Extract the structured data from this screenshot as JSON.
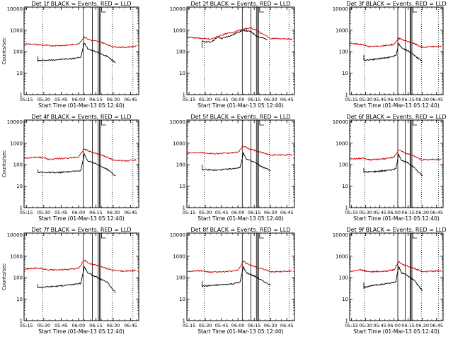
{
  "colors": {
    "events": "#000000",
    "lld": "#cc0000",
    "axes": "#000000",
    "background": "#ffffff"
  },
  "chart_data": [
    {
      "type": "line",
      "title": "Det 1f BLACK = Events, RED = LLD",
      "xlabel": "Start Time (01-Mar-13 05:12:40)",
      "ylabel": "Counts/sec",
      "yscale": "log",
      "ylim": [
        1,
        12000
      ],
      "xlim": [
        "05:13",
        "06:52"
      ],
      "x_ticks": [
        "05:15",
        "05:30",
        "05:45",
        "06:00",
        "06:15",
        "06:30",
        "06:45"
      ],
      "y_ticks": [
        "1",
        "10",
        "100",
        "1000",
        "10000"
      ],
      "dotted_vlines": [
        "05:29",
        "06:29",
        "06:47"
      ],
      "solid_vlines": [
        "06:04",
        "06:12",
        "06:17",
        "06:18",
        "06:19"
      ],
      "flag_time": "06:20",
      "series": [
        {
          "name": "Events",
          "x": [
            "05:25",
            "05:25",
            "05:40",
            "05:55",
            "06:02",
            "06:05",
            "06:08",
            "06:15",
            "06:25",
            "06:32"
          ],
          "values": [
            60,
            38,
            42,
            48,
            55,
            260,
            140,
            100,
            60,
            30
          ]
        },
        {
          "name": "LLD",
          "x": [
            "05:13",
            "05:20",
            "05:35",
            "05:50",
            "06:00",
            "06:05",
            "06:10",
            "06:20",
            "06:30",
            "06:40",
            "06:50"
          ],
          "values": [
            230,
            225,
            190,
            200,
            230,
            480,
            350,
            270,
            170,
            160,
            180
          ]
        }
      ]
    },
    {
      "type": "line",
      "title": "Det 2f BLACK = Events, RED = LLD",
      "xlabel": "Start Time (01-Mar-13 05:12:40)",
      "ylabel": "",
      "yscale": "log",
      "ylim": [
        1,
        12000
      ],
      "xlim": [
        "05:13",
        "06:52"
      ],
      "x_ticks": [
        "05:15",
        "05:30",
        "05:45",
        "06:00",
        "06:15",
        "06:30",
        "06:45"
      ],
      "y_ticks": [
        "1",
        "10",
        "100",
        "1000",
        "10000"
      ],
      "dotted_vlines": [
        "05:29",
        "06:29",
        "06:47"
      ],
      "solid_vlines": [
        "06:04",
        "06:12",
        "06:17",
        "06:18",
        "06:19"
      ],
      "flag_time": "06:20",
      "series": [
        {
          "name": "Events",
          "x": [
            "05:27",
            "05:27",
            "05:35",
            "05:42",
            "05:45",
            "05:50",
            "05:55",
            "06:00",
            "06:05",
            "06:12",
            "06:18",
            "06:27"
          ],
          "values": [
            150,
            300,
            280,
            480,
            400,
            500,
            600,
            800,
            1000,
            850,
            500,
            380
          ]
        },
        {
          "name": "LLD",
          "x": [
            "05:13",
            "05:25",
            "05:35",
            "05:45",
            "05:55",
            "06:05",
            "06:12",
            "06:20",
            "06:30",
            "06:50"
          ],
          "values": [
            480,
            420,
            380,
            600,
            800,
            1100,
            1300,
            800,
            420,
            380
          ]
        }
      ]
    },
    {
      "type": "line",
      "title": "Det 3f BLACK = Events, RED = LLD",
      "xlabel": "Start Time (01-Mar-13 05:12:40)",
      "ylabel": "",
      "yscale": "log",
      "ylim": [
        1,
        12000
      ],
      "xlim": [
        "05:13",
        "06:52"
      ],
      "x_ticks": [
        "05:15",
        "05:30",
        "05:45",
        "06:00",
        "06:15",
        "06:30",
        "06:45"
      ],
      "y_ticks": [
        "1",
        "10",
        "100",
        "1000",
        "10000"
      ],
      "dotted_vlines": [
        "05:29",
        "06:29",
        "06:47"
      ],
      "solid_vlines": [
        "06:04",
        "06:12",
        "06:17",
        "06:18",
        "06:19"
      ],
      "flag_time": "06:20",
      "series": [
        {
          "name": "Events",
          "x": [
            "05:28",
            "05:28",
            "05:40",
            "05:55",
            "06:02",
            "06:05",
            "06:08",
            "06:15",
            "06:22",
            "06:30"
          ],
          "values": [
            70,
            40,
            45,
            55,
            65,
            250,
            150,
            110,
            65,
            35
          ]
        },
        {
          "name": "LLD",
          "x": [
            "05:13",
            "05:25",
            "05:35",
            "05:50",
            "06:00",
            "06:05",
            "06:10",
            "06:20",
            "06:30",
            "06:50"
          ],
          "values": [
            240,
            220,
            170,
            190,
            220,
            420,
            340,
            250,
            160,
            180
          ]
        }
      ]
    },
    {
      "type": "line",
      "title": "Det 4f BLACK = Events, RED = LLD",
      "xlabel": "Start Time (01-Mar-13 05:12:40)",
      "ylabel": "Counts/sec",
      "yscale": "log",
      "ylim": [
        1,
        12000
      ],
      "xlim": [
        "05:13",
        "06:52"
      ],
      "x_ticks": [
        "05:15",
        "05:30",
        "05:45",
        "06:00",
        "06:15",
        "06:30",
        "06:45"
      ],
      "y_ticks": [
        "1",
        "10",
        "100",
        "1000",
        "10000"
      ],
      "dotted_vlines": [
        "05:29",
        "06:29",
        "06:47"
      ],
      "solid_vlines": [
        "06:04",
        "06:12",
        "06:17",
        "06:18",
        "06:19"
      ],
      "flag_time": "06:20",
      "series": [
        {
          "name": "Events",
          "x": [
            "05:25",
            "05:25",
            "05:40",
            "05:55",
            "06:02",
            "06:05",
            "06:08",
            "06:15",
            "06:25",
            "06:32"
          ],
          "values": [
            60,
            45,
            42,
            48,
            55,
            300,
            150,
            110,
            60,
            30
          ]
        },
        {
          "name": "LLD",
          "x": [
            "05:13",
            "05:25",
            "05:35",
            "05:50",
            "06:00",
            "06:05",
            "06:10",
            "06:20",
            "06:30",
            "06:40",
            "06:50"
          ],
          "values": [
            200,
            230,
            180,
            200,
            230,
            550,
            400,
            280,
            170,
            150,
            170
          ]
        }
      ]
    },
    {
      "type": "line",
      "title": "Det 5f BLACK = Events, RED = LLD",
      "xlabel": "Start Time (01-Mar-13 05:12:40)",
      "ylabel": "",
      "yscale": "log",
      "ylim": [
        1,
        12000
      ],
      "xlim": [
        "05:13",
        "06:52"
      ],
      "x_ticks": [
        "05:15",
        "05:30",
        "05:45",
        "06:00",
        "06:15",
        "06:30",
        "06:45"
      ],
      "y_ticks": [
        "1",
        "10",
        "100",
        "1000",
        "10000"
      ],
      "dotted_vlines": [
        "05:29",
        "06:29",
        "06:47"
      ],
      "solid_vlines": [
        "06:04",
        "06:12",
        "06:17",
        "06:18",
        "06:19"
      ],
      "flag_time": "06:20",
      "series": [
        {
          "name": "Events",
          "x": [
            "05:27",
            "05:27",
            "05:40",
            "05:55",
            "06:02",
            "06:05",
            "06:08",
            "06:15",
            "06:22",
            "06:30"
          ],
          "values": [
            100,
            60,
            55,
            65,
            75,
            350,
            180,
            130,
            80,
            55
          ]
        },
        {
          "name": "LLD",
          "x": [
            "05:13",
            "05:25",
            "05:35",
            "05:50",
            "06:00",
            "06:05",
            "06:10",
            "06:20",
            "06:30",
            "06:50"
          ],
          "values": [
            350,
            380,
            330,
            340,
            380,
            750,
            550,
            400,
            280,
            290
          ]
        }
      ]
    },
    {
      "type": "line",
      "title": "Det 6f BLACK = Events, RED = LLD",
      "xlabel": "Start Time (01-Mar-13 05:12:40)",
      "ylabel": "",
      "yscale": "log",
      "ylim": [
        1,
        12000
      ],
      "xlim": [
        "05:13",
        "06:52"
      ],
      "x_ticks": [
        "05:15",
        "05:30",
        "05:45",
        "06:00",
        "06:15",
        "06:30",
        "06:45"
      ],
      "y_ticks": [
        "1",
        "10",
        "100",
        "1000",
        "10000"
      ],
      "dotted_vlines": [
        "05:29",
        "06:29",
        "06:47"
      ],
      "solid_vlines": [
        "06:04",
        "06:12",
        "06:17",
        "06:18",
        "06:19"
      ],
      "flag_time": "06:20",
      "series": [
        {
          "name": "Events",
          "x": [
            "05:28",
            "05:28",
            "05:40",
            "05:55",
            "06:02",
            "06:05",
            "06:08",
            "06:15",
            "06:22",
            "06:30"
          ],
          "values": [
            70,
            45,
            48,
            55,
            65,
            300,
            160,
            120,
            70,
            30
          ]
        },
        {
          "name": "LLD",
          "x": [
            "05:13",
            "05:25",
            "05:35",
            "05:50",
            "06:00",
            "06:05",
            "06:10",
            "06:20",
            "06:30",
            "06:50"
          ],
          "values": [
            180,
            200,
            170,
            190,
            220,
            500,
            380,
            260,
            170,
            180
          ]
        }
      ]
    },
    {
      "type": "line",
      "title": "Det 7f BLACK = Events, RED = LLD",
      "xlabel": "Start Time (01-Mar-13 05:12:40)",
      "ylabel": "Counts/sec",
      "yscale": "log",
      "ylim": [
        1,
        12000
      ],
      "xlim": [
        "05:13",
        "06:52"
      ],
      "x_ticks": [
        "05:15",
        "05:30",
        "05:45",
        "06:00",
        "06:15",
        "06:30",
        "06:45"
      ],
      "y_ticks": [
        "1",
        "10",
        "100",
        "1000",
        "10000"
      ],
      "dotted_vlines": [
        "05:29",
        "06:29",
        "06:47"
      ],
      "solid_vlines": [
        "06:04",
        "06:12",
        "06:17",
        "06:18",
        "06:19"
      ],
      "flag_time": "06:20",
      "series": [
        {
          "name": "Events",
          "x": [
            "05:25",
            "05:25",
            "05:40",
            "05:55",
            "06:02",
            "06:05",
            "06:08",
            "06:15",
            "06:25",
            "06:32"
          ],
          "values": [
            50,
            35,
            40,
            48,
            55,
            320,
            170,
            110,
            60,
            20
          ]
        },
        {
          "name": "LLD",
          "x": [
            "05:13",
            "05:25",
            "05:35",
            "05:50",
            "06:00",
            "06:05",
            "06:10",
            "06:20",
            "06:30",
            "06:40",
            "06:50"
          ],
          "values": [
            250,
            280,
            230,
            240,
            270,
            650,
            450,
            320,
            220,
            200,
            220
          ]
        }
      ]
    },
    {
      "type": "line",
      "title": "Det 8f BLACK = Events, RED = LLD",
      "xlabel": "Start Time (01-Mar-13 05:12:40)",
      "ylabel": "",
      "yscale": "log",
      "ylim": [
        1,
        12000
      ],
      "xlim": [
        "05:13",
        "06:52"
      ],
      "x_ticks": [
        "05:15",
        "05:30",
        "05:45",
        "06:00",
        "06:15",
        "06:30",
        "06:45"
      ],
      "y_ticks": [
        "1",
        "10",
        "100",
        "1000",
        "10000"
      ],
      "dotted_vlines": [
        "05:29",
        "06:29",
        "06:47"
      ],
      "solid_vlines": [
        "06:04",
        "06:12",
        "06:17",
        "06:18",
        "06:19"
      ],
      "flag_time": "06:20",
      "series": [
        {
          "name": "Events",
          "x": [
            "05:27",
            "05:27",
            "05:40",
            "05:55",
            "06:02",
            "06:05",
            "06:08",
            "06:15",
            "06:22",
            "06:30"
          ],
          "values": [
            70,
            40,
            45,
            52,
            62,
            320,
            170,
            120,
            75,
            45
          ]
        },
        {
          "name": "LLD",
          "x": [
            "05:13",
            "05:25",
            "05:35",
            "05:50",
            "06:00",
            "06:05",
            "06:10",
            "06:20",
            "06:30",
            "06:50"
          ],
          "values": [
            200,
            210,
            180,
            190,
            220,
            600,
            400,
            280,
            190,
            200
          ]
        }
      ]
    },
    {
      "type": "line",
      "title": "Det 9f BLACK = Events, RED = LLD",
      "xlabel": "Start Time (01-Mar-13 05:12:40)",
      "ylabel": "",
      "yscale": "log",
      "ylim": [
        1,
        12000
      ],
      "xlim": [
        "05:13",
        "06:52"
      ],
      "x_ticks": [
        "05:15",
        "05:30",
        "05:45",
        "06:00",
        "06:15",
        "06:30",
        "06:45"
      ],
      "y_ticks": [
        "1",
        "10",
        "100",
        "1000",
        "10000"
      ],
      "dotted_vlines": [
        "05:29",
        "06:29",
        "06:47"
      ],
      "solid_vlines": [
        "06:04",
        "06:12",
        "06:17",
        "06:18",
        "06:19"
      ],
      "flag_time": "06:20",
      "series": [
        {
          "name": "Events",
          "x": [
            "05:28",
            "05:28",
            "05:40",
            "05:55",
            "06:02",
            "06:05",
            "06:08",
            "06:15",
            "06:22",
            "06:30"
          ],
          "values": [
            60,
            35,
            45,
            55,
            65,
            330,
            170,
            120,
            70,
            25
          ]
        },
        {
          "name": "LLD",
          "x": [
            "05:13",
            "05:25",
            "05:35",
            "05:50",
            "06:00",
            "06:05",
            "06:10",
            "06:20",
            "06:30",
            "06:50"
          ],
          "values": [
            200,
            230,
            190,
            200,
            230,
            550,
            400,
            290,
            190,
            210
          ]
        }
      ]
    }
  ]
}
